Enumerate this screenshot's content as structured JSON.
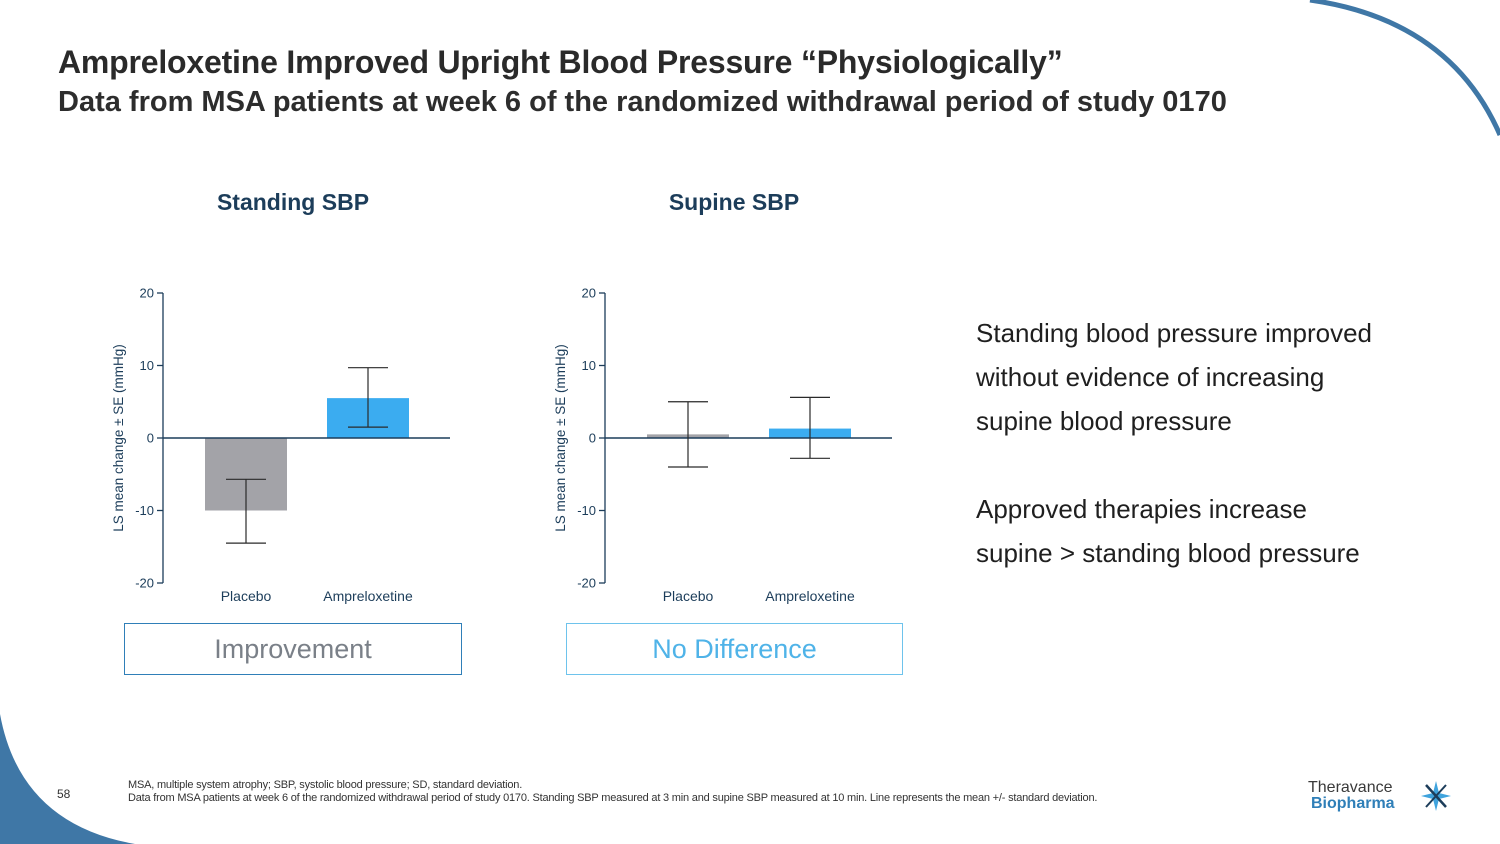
{
  "slide": {
    "title": "Ampreloxetine Improved Upright Blood Pressure “Physiologically”",
    "subtitle": "Data from MSA patients at week 6 of the randomized withdrawal period of study 0170",
    "page_number": "58"
  },
  "colors": {
    "placebo": "#a3a3a8",
    "ampreloxetine": "#3bacf0",
    "axis": "#1c3d5a",
    "accent": "#2f7fb8",
    "verdict_improvement_text": "#7a8088",
    "verdict_nodiff_text": "#4fb3e8",
    "verdict_nodiff_border": "#6ec3ec"
  },
  "chart_data": [
    {
      "type": "bar",
      "title": "Standing SBP",
      "categories": [
        "Placebo",
        "Ampreloxetine"
      ],
      "values": [
        -10,
        5.5
      ],
      "error_low": [
        -14.5,
        1.5
      ],
      "error_high": [
        -5.7,
        9.7
      ],
      "ylabel": "LS mean change ± SE (mmHg)",
      "ylim": [
        -20,
        20
      ],
      "yticks": [
        "20",
        "10",
        "0",
        "-10",
        "-20"
      ],
      "verdict": "Improvement"
    },
    {
      "type": "bar",
      "title": "Supine SBP",
      "categories": [
        "Placebo",
        "Ampreloxetine"
      ],
      "values": [
        0.5,
        1.3
      ],
      "error_low": [
        -4,
        -2.8
      ],
      "error_high": [
        5,
        5.6
      ],
      "ylabel": "LS mean change ± SE (mmHg)",
      "ylim": [
        -20,
        20
      ],
      "yticks": [
        "20",
        "10",
        "0",
        "-10",
        "-20"
      ],
      "verdict": "No Difference"
    }
  ],
  "side_text": {
    "line1": "Standing blood pressure improved",
    "line2": "without evidence of increasing",
    "line3": "supine blood pressure",
    "line4": "Approved therapies increase",
    "line5": "supine > standing blood pressure"
  },
  "footnotes": {
    "line1": "MSA, multiple system atrophy; SBP, systolic blood pressure; SD, standard deviation.",
    "line2": "Data from MSA patients at week 6 of the randomized withdrawal period of study 0170. Standing SBP measured at 3 min and supine SBP measured at 10 min. Line represents the mean +/- standard deviation."
  },
  "logo": {
    "line1": "Theravance",
    "line2": "Biopharma"
  }
}
